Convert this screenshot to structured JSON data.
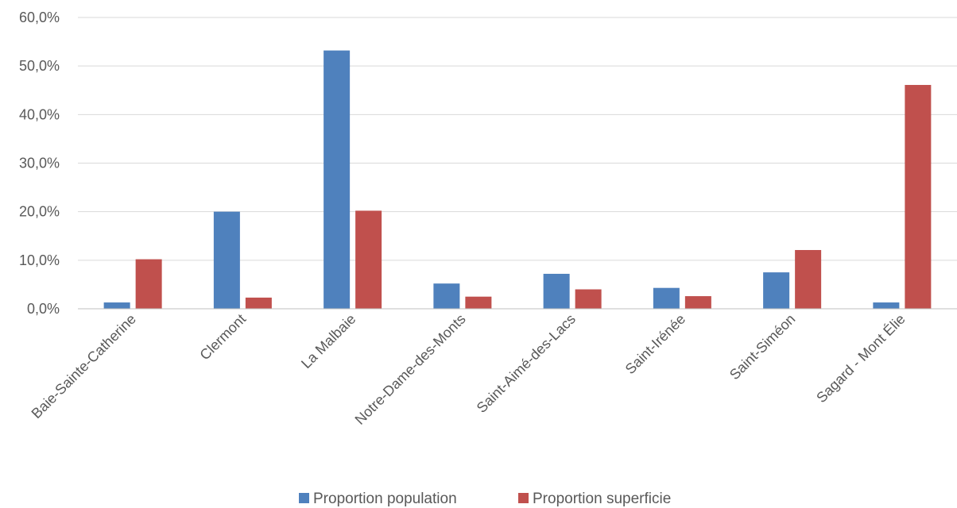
{
  "chart_data": {
    "type": "bar",
    "categories": [
      "Baie-Sainte-Catherine",
      "Clermont",
      "La Malbaie",
      "Notre-Dame-des-Monts",
      "Saint-Aimé-des-Lacs",
      "Saint-Irénée",
      "Saint-Siméon",
      "Sagard - Mont Élie"
    ],
    "series": [
      {
        "name": "Proportion population",
        "color": "#4F81BD",
        "values": [
          1.3,
          20.0,
          53.2,
          5.2,
          7.2,
          4.3,
          7.5,
          1.3
        ]
      },
      {
        "name": "Proportion superficie",
        "color": "#C0504D",
        "values": [
          10.2,
          2.3,
          20.2,
          2.5,
          4.0,
          2.6,
          12.1,
          46.1
        ]
      }
    ],
    "title": "",
    "xlabel": "",
    "ylabel": "",
    "ylim": [
      0,
      60
    ],
    "yticks": [
      "0,0%",
      "10,0%",
      "20,0%",
      "30,0%",
      "40,0%",
      "50,0%",
      "60,0%"
    ],
    "grid": true,
    "legend_position": "bottom"
  }
}
